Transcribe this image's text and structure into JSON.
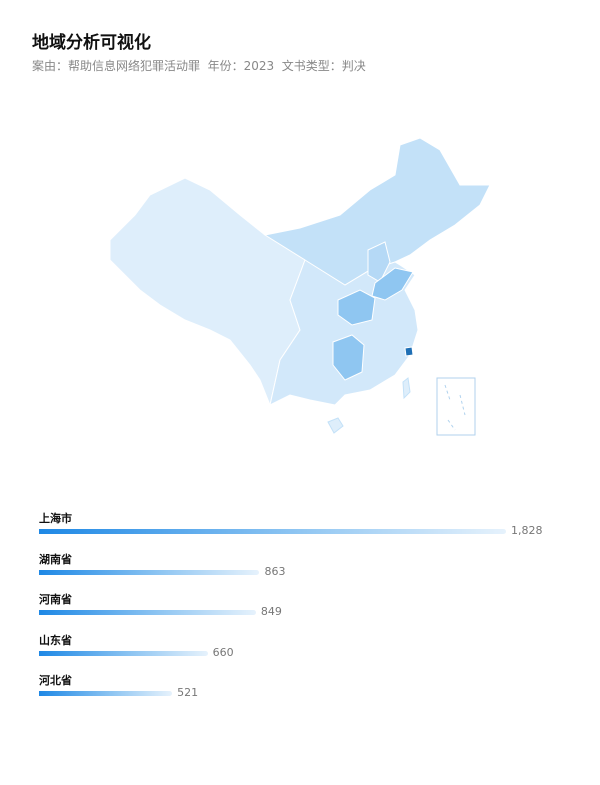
{
  "header": {
    "title": "地域分析可视化",
    "subtitle": "案由：帮助信息网络犯罪活动罪  年份：2023  文书类型：判决"
  },
  "map": {
    "colors": {
      "low": "#deeefb",
      "mid": "#c3e1f8",
      "high": "#8fc6f1",
      "max": "#1f6fb5",
      "border": "#ffffff"
    },
    "highlighted": [
      "上海市",
      "湖南省",
      "河南省",
      "山东省",
      "河北省"
    ]
  },
  "ranking": {
    "max": 1828,
    "items": [
      {
        "name": "上海市",
        "value": 1828,
        "label": "1,828"
      },
      {
        "name": "湖南省",
        "value": 863,
        "label": "863"
      },
      {
        "name": "河南省",
        "value": 849,
        "label": "849"
      },
      {
        "name": "山东省",
        "value": 660,
        "label": "660"
      },
      {
        "name": "河北省",
        "value": 521,
        "label": "521"
      }
    ]
  }
}
